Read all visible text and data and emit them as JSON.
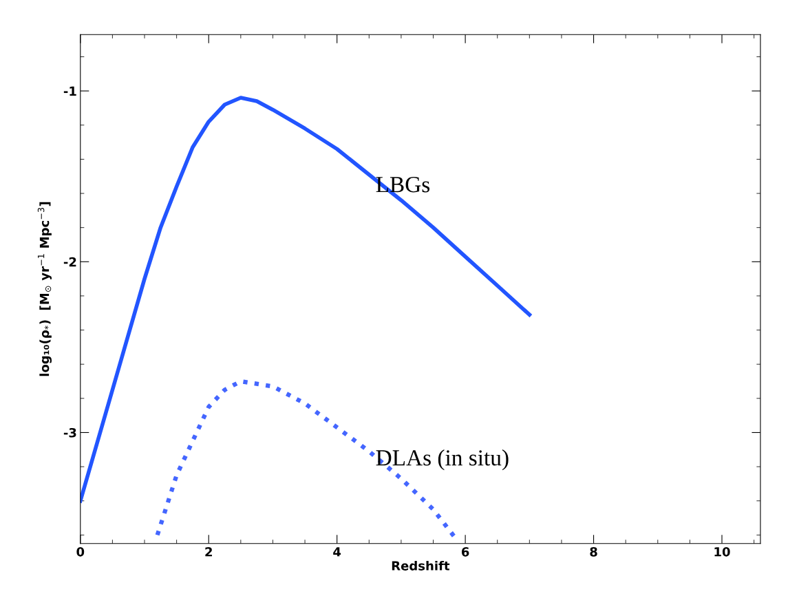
{
  "chart_data": {
    "type": "line",
    "xlabel": "Redshift",
    "ylabel": "log₁₀(ρ$_{*}$)  [M$_{⊙}$ yr$^{−1}$ Mpc$^{−3}$]",
    "xlim": [
      0,
      10.6
    ],
    "ylim": [
      -3.65,
      -0.67
    ],
    "xticks": [
      0,
      2,
      4,
      6,
      8,
      10
    ],
    "yticks": [
      {
        "value": -1,
        "label": "-1"
      },
      {
        "value": -2,
        "label": "-2"
      },
      {
        "value": -3,
        "label": "-3"
      }
    ],
    "grid": false,
    "legend": false,
    "series": [
      {
        "color": "#2255ff",
        "line_style": "solid",
        "x": [
          0,
          0.5,
          1,
          1.25,
          1.5,
          1.75,
          2,
          2.25,
          2.5,
          2.75,
          3,
          3.5,
          4,
          4.5,
          5,
          5.5,
          6,
          6.5,
          7
        ],
        "values": [
          -3.4,
          -2.75,
          -2.1,
          -1.8,
          -1.56,
          -1.33,
          -1.18,
          -1.08,
          -1.04,
          -1.06,
          -1.11,
          -1.22,
          -1.34,
          -1.49,
          -1.64,
          -1.8,
          -1.97,
          -2.14,
          -2.31
        ]
      },
      {
        "color": "#4466ff",
        "line_style": "dotted",
        "x": [
          1.2,
          1.5,
          1.75,
          2,
          2.25,
          2.5,
          3,
          3.5,
          4,
          4.5,
          5,
          5.5,
          5.85
        ],
        "values": [
          -3.6,
          -3.25,
          -3.05,
          -2.85,
          -2.75,
          -2.7,
          -2.73,
          -2.83,
          -2.97,
          -3.11,
          -3.27,
          -3.45,
          -3.62
        ]
      }
    ],
    "annotations": [
      {
        "text": "LBGs",
        "x": 4.6,
        "y": -1.56
      },
      {
        "text": "DLAs (in situ)",
        "x": 4.6,
        "y": -3.16
      }
    ]
  }
}
